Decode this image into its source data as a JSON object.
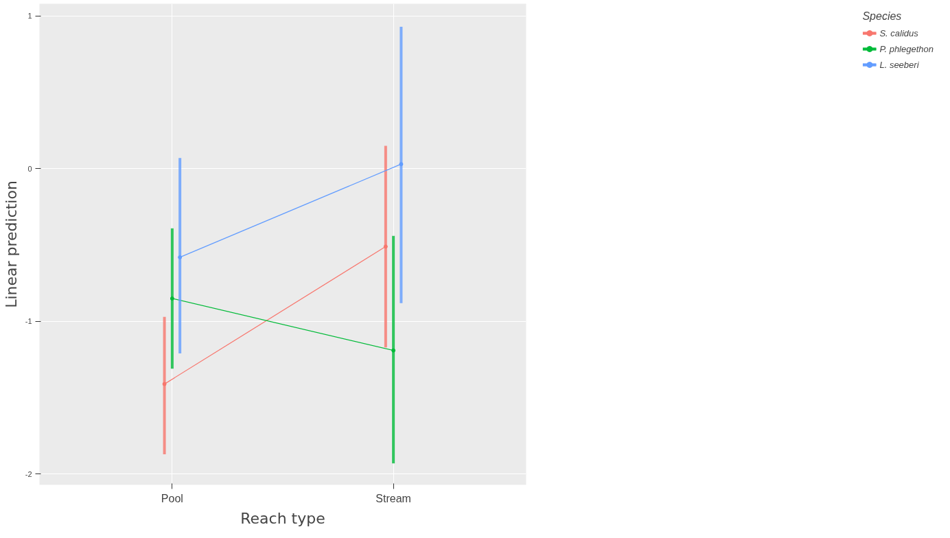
{
  "chart_data": {
    "type": "line",
    "xlabel": "Reach type",
    "ylabel": "Linear prediction",
    "legend_title": "Species",
    "categories": [
      "Pool",
      "Stream"
    ],
    "series": [
      {
        "name": "S. calidus",
        "color": "#f8766d",
        "values": [
          -1.41,
          -0.51
        ],
        "errors": [
          [
            -1.87,
            -0.97
          ],
          [
            -1.17,
            0.15
          ]
        ]
      },
      {
        "name": "P. phlegethon",
        "color": "#00ba38",
        "values": [
          -0.85,
          -1.19
        ],
        "errors": [
          [
            -1.31,
            -0.39
          ],
          [
            -1.93,
            -0.44
          ]
        ]
      },
      {
        "name": "L. seeberi",
        "color": "#619cff",
        "values": [
          -0.58,
          0.03
        ],
        "errors": [
          [
            -1.21,
            0.07
          ],
          [
            -0.88,
            0.93
          ]
        ]
      }
    ],
    "ylim": [
      -2.07,
      1.08
    ],
    "yticks": [
      -2,
      -1,
      0,
      1
    ],
    "grid": true,
    "legend": "right",
    "marker": "circle",
    "line_style": "solid"
  }
}
